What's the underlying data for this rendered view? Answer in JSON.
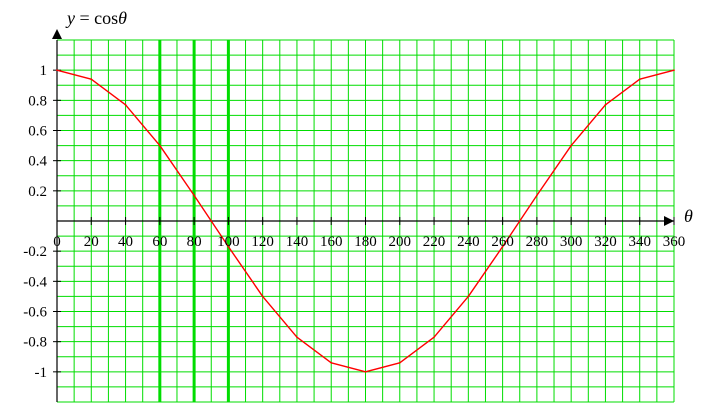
{
  "chart_data": {
    "type": "line",
    "title": "y = cos θ",
    "title_parts": {
      "y": "y",
      "eq": " = cos",
      "theta": "θ"
    },
    "xlabel": "θ",
    "ylabel": "",
    "xlim": [
      0,
      360
    ],
    "ylim": [
      -1.2,
      1.2
    ],
    "grid": true,
    "x_ticks": [
      0,
      20,
      40,
      60,
      80,
      100,
      120,
      140,
      160,
      180,
      200,
      220,
      240,
      260,
      280,
      300,
      320,
      340,
      360
    ],
    "y_ticks": [
      -1,
      -0.8,
      -0.6,
      -0.4,
      -0.2,
      0.2,
      0.4,
      0.6,
      0.8,
      1
    ],
    "x_tick_labels": [
      "0",
      "20",
      "40",
      "60",
      "80",
      "100",
      "120",
      "140",
      "160",
      "180",
      "200",
      "220",
      "240",
      "260",
      "280",
      "300",
      "320",
      "340",
      "360"
    ],
    "y_tick_labels": [
      "-1",
      "-0.8",
      "-0.6",
      "-0.4",
      "-0.2",
      "0.2",
      "0.4",
      "0.6",
      "0.8",
      "1"
    ],
    "emphasized_vertical_gridlines": [
      60,
      80,
      100
    ],
    "series": [
      {
        "x": [
          0,
          20,
          40,
          60,
          80,
          90,
          100,
          120,
          140,
          160,
          180,
          200,
          220,
          240,
          260,
          270,
          280,
          300,
          320,
          340,
          360
        ],
        "values": [
          1.0,
          0.94,
          0.77,
          0.5,
          0.17,
          0.0,
          -0.17,
          -0.5,
          -0.77,
          -0.94,
          -1.0,
          -0.94,
          -0.77,
          -0.5,
          -0.17,
          0.0,
          0.17,
          0.5,
          0.77,
          0.94,
          1.0
        ]
      }
    ],
    "colors": {
      "grid": "#00dd00",
      "curve": "#ff0000",
      "axis": "#000000",
      "background": "#ffffff"
    }
  }
}
